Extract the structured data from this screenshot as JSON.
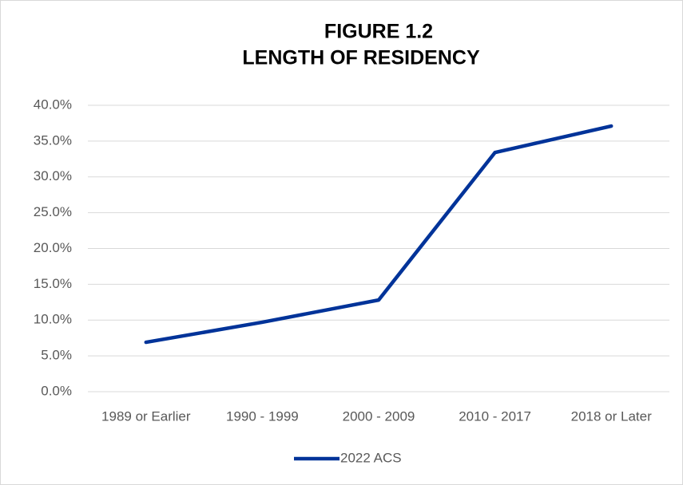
{
  "chart_data": {
    "type": "line",
    "title": [
      "FIGURE 1.2",
      "LENGTH OF RESIDENCY"
    ],
    "categories": [
      "1989 or Earlier",
      "1990 - 1999",
      "2000 - 2009",
      "2010 - 2017",
      "2018 or Later"
    ],
    "series": [
      {
        "name": "2022 ACS",
        "color": "#003399",
        "values": [
          6.9,
          9.7,
          12.8,
          33.4,
          37.1
        ]
      }
    ],
    "ylim": [
      0,
      40
    ],
    "yticks": [
      {
        "value": 0,
        "label": "0.0%"
      },
      {
        "value": 5,
        "label": "5.0%"
      },
      {
        "value": 10,
        "label": "10.0%"
      },
      {
        "value": 15,
        "label": "15.0%"
      },
      {
        "value": 20,
        "label": "20.0%"
      },
      {
        "value": 25,
        "label": "25.0%"
      },
      {
        "value": 30,
        "label": "30.0%"
      },
      {
        "value": 35,
        "label": "35.0%"
      },
      {
        "value": 40,
        "label": "40.0%"
      }
    ],
    "grid": true,
    "legend": "bottom"
  }
}
